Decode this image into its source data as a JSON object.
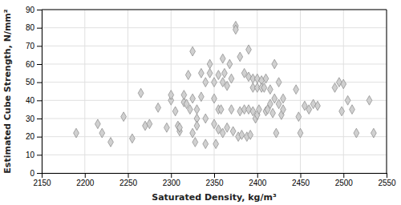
{
  "chart_data": {
    "type": "scatter",
    "xlabel": "Saturated Density, kg/m³",
    "ylabel": "Estimated Cube Strength, N/mm²",
    "x": [
      2190,
      2215,
      2220,
      2230,
      2245,
      2255,
      2265,
      2270,
      2275,
      2285,
      2295,
      2300,
      2300,
      2305,
      2308,
      2310,
      2310,
      2315,
      2315,
      2318,
      2320,
      2322,
      2325,
      2325,
      2325,
      2328,
      2330,
      2330,
      2330,
      2335,
      2335,
      2340,
      2340,
      2340,
      2345,
      2345,
      2350,
      2350,
      2350,
      2352,
      2355,
      2355,
      2355,
      2358,
      2360,
      2360,
      2360,
      2362,
      2365,
      2365,
      2368,
      2370,
      2370,
      2372,
      2375,
      2375,
      2378,
      2380,
      2380,
      2382,
      2385,
      2385,
      2388,
      2390,
      2390,
      2390,
      2392,
      2395,
      2395,
      2395,
      2398,
      2400,
      2400,
      2400,
      2402,
      2405,
      2405,
      2408,
      2410,
      2410,
      2412,
      2415,
      2415,
      2418,
      2420,
      2420,
      2422,
      2425,
      2425,
      2428,
      2430,
      2430,
      2445,
      2448,
      2450,
      2455,
      2460,
      2465,
      2470,
      2490,
      2495,
      2498,
      2500,
      2505,
      2510,
      2515,
      2530,
      2535
    ],
    "y": [
      22,
      27,
      22,
      17,
      31,
      19,
      44,
      26,
      27,
      36,
      25,
      40,
      43,
      34,
      26,
      23,
      25,
      39,
      43,
      38,
      54,
      35,
      67,
      41,
      22,
      17,
      30,
      35,
      26,
      55,
      42,
      50,
      30,
      16,
      60,
      55,
      41,
      50,
      27,
      16,
      54,
      35,
      24,
      35,
      63,
      50,
      22,
      55,
      48,
      25,
      60,
      52,
      35,
      23,
      81,
      79,
      20,
      64,
      34,
      21,
      55,
      35,
      20,
      68,
      53,
      35,
      21,
      52,
      47,
      34,
      30,
      52,
      47,
      32,
      35,
      51,
      47,
      47,
      52,
      34,
      35,
      46,
      38,
      33,
      60,
      41,
      22,
      50,
      38,
      32,
      41,
      35,
      46,
      31,
      22,
      37,
      35,
      38,
      37,
      47,
      50,
      34,
      49,
      40,
      35,
      22,
      40,
      22
    ],
    "xlim": [
      2150,
      2550
    ],
    "ylim": [
      0,
      90
    ],
    "xticks": [
      2150,
      2200,
      2250,
      2300,
      2350,
      2400,
      2450,
      2500,
      2550
    ],
    "yticks": [
      0,
      10,
      20,
      30,
      40,
      50,
      60,
      70,
      80,
      90
    ],
    "grid": true,
    "color": "#d0d0d0",
    "marker": "diamond"
  }
}
